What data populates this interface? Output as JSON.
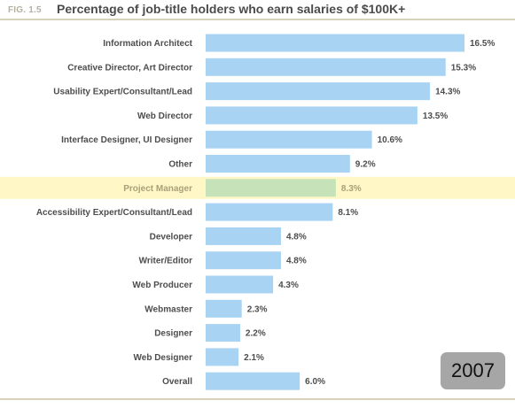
{
  "figure": {
    "label": "FIG. 1.5",
    "title": "Percentage of job-title holders who earn salaries of $100K+",
    "year_badge": "2007"
  },
  "colors": {
    "bar": "#a8d3f3",
    "highlight_bar": "#c6e2b8",
    "highlight_band": "#fff8c6",
    "text": "#4d4d4d",
    "highlight_text": "#a8a07a"
  },
  "chart_data": {
    "type": "bar",
    "orientation": "horizontal",
    "title": "Percentage of job-title holders who earn salaries of $100K+",
    "categories": [
      "Information Architect",
      "Creative Director, Art Director",
      "Usability Expert/Consultant/Lead",
      "Web Director",
      "Interface Designer, UI Designer",
      "Other",
      "Project Manager",
      "Accessibility Expert/Consultant/Lead",
      "Developer",
      "Writer/Editor",
      "Web Producer",
      "Webmaster",
      "Designer",
      "Web Designer",
      "Overall"
    ],
    "values": [
      16.5,
      15.3,
      14.3,
      13.5,
      10.6,
      9.2,
      8.3,
      8.1,
      4.8,
      4.8,
      4.3,
      2.3,
      2.2,
      2.1,
      6.0
    ],
    "value_labels": [
      "16.5%",
      "15.3%",
      "14.3%",
      "13.5%",
      "10.6%",
      "9.2%",
      "8.3%",
      "8.1%",
      "4.8%",
      "4.8%",
      "4.3%",
      "2.3%",
      "2.2%",
      "2.1%",
      "6.0%"
    ],
    "highlight_category": "Project Manager",
    "xlim": [
      0,
      16.5
    ],
    "grid": false,
    "legend": false
  }
}
